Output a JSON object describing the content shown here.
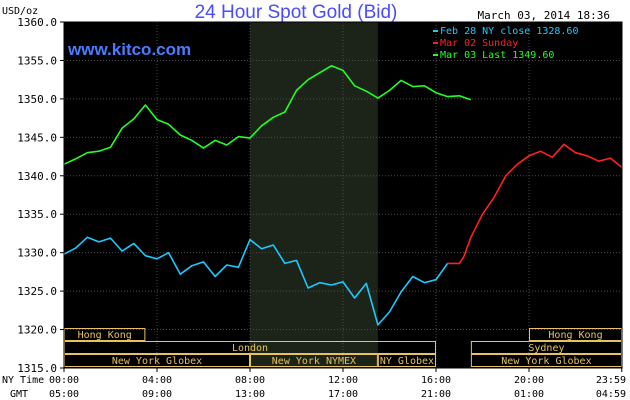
{
  "header": {
    "unit": "USD/oz",
    "title": "24 Hour Spot Gold (Bid)",
    "date": "March 03, 2014 18:36",
    "watermark": "www.kitco.com"
  },
  "legend": [
    {
      "label": "Feb 28 NY close 1328.60",
      "color": "#1ec8ff"
    },
    {
      "label": "Mar 02 Sunday",
      "color": "#ff2020"
    },
    {
      "label": "Mar 03 Last 1349.60",
      "color": "#22ff22"
    }
  ],
  "axis_labels": {
    "ny_time": "NY Time",
    "gmt": "GMT"
  },
  "colors": {
    "background": "#000000",
    "title": "#4b4bff",
    "watermark": "#4b7bff",
    "grid": "#4a4a4a",
    "axis_text": "#000000",
    "session_text": "#e8c25a",
    "shade": "#1c2419"
  },
  "sessions": {
    "row1": [
      {
        "label": "Hong Kong",
        "start": 0,
        "end": 3.5
      },
      {
        "label": "Hong Kong",
        "start": 20,
        "end": 24
      }
    ],
    "row2": [
      {
        "label": "London",
        "start": 0,
        "end": 16
      },
      {
        "label": "Sydney",
        "start": 17.5,
        "end": 24
      }
    ],
    "row3": [
      {
        "label": "New York Globex",
        "start": 0,
        "end": 8
      },
      {
        "label": "New York NYMEX",
        "start": 8,
        "end": 13.5
      },
      {
        "label": "NY Globex",
        "start": 13.5,
        "end": 16
      },
      {
        "label": "New York Globex",
        "start": 17.5,
        "end": 24
      }
    ]
  },
  "chart_data": {
    "type": "line",
    "title": "24 Hour Spot Gold (Bid)",
    "ylabel": "USD/oz",
    "ylim": [
      1315,
      1360
    ],
    "yticks": [
      "1315.0",
      "1320.0",
      "1325.0",
      "1330.0",
      "1335.0",
      "1340.0",
      "1345.0",
      "1350.0",
      "1355.0",
      "1360.0"
    ],
    "xlim": [
      0,
      24
    ],
    "xticks_ny": [
      "00:00",
      "04:00",
      "08:00",
      "12:00",
      "16:00",
      "20:00",
      "23:59"
    ],
    "xticks_gmt": [
      "05:00",
      "09:00",
      "13:00",
      "17:00",
      "21:00",
      "01:00",
      "04:59"
    ],
    "shaded_range": [
      8,
      13.5
    ],
    "series": [
      {
        "name": "Feb 28 NY close 1328.60",
        "color": "#1ec8ff",
        "x": [
          0,
          0.5,
          1,
          1.5,
          2,
          2.5,
          3,
          3.5,
          4,
          4.5,
          5,
          5.5,
          6,
          6.5,
          7,
          7.5,
          8,
          8.5,
          9,
          9.5,
          10,
          10.5,
          11,
          11.5,
          12,
          12.5,
          13,
          13.5,
          14,
          14.5,
          15,
          15.5,
          16,
          16.5
        ],
        "y": [
          1329.8,
          1330.6,
          1332.0,
          1331.4,
          1331.9,
          1330.2,
          1331.2,
          1329.6,
          1329.2,
          1330.0,
          1327.2,
          1328.3,
          1328.8,
          1326.9,
          1328.4,
          1328.1,
          1331.7,
          1330.5,
          1331.0,
          1328.6,
          1329.0,
          1325.4,
          1326.1,
          1325.8,
          1326.2,
          1324.1,
          1326.0,
          1320.6,
          1322.3,
          1324.9,
          1326.9,
          1326.1,
          1326.5,
          1328.6
        ]
      },
      {
        "name": "Mar 02 Sunday",
        "color": "#ff2020",
        "x": [
          16.5,
          17.0,
          17.2,
          17.5,
          18,
          18.5,
          19,
          19.5,
          20,
          20.5,
          21,
          21.5,
          22,
          22.5,
          23,
          23.5,
          23.99
        ],
        "y": [
          1328.6,
          1328.6,
          1329.5,
          1332.0,
          1335.0,
          1337.2,
          1340.0,
          1341.5,
          1342.6,
          1343.2,
          1342.4,
          1344.1,
          1343.0,
          1342.6,
          1341.9,
          1342.3,
          1341.1
        ]
      },
      {
        "name": "Mar 03 Last 1349.60",
        "color": "#22ff22",
        "x": [
          0,
          0.5,
          1,
          1.5,
          2,
          2.5,
          3,
          3.5,
          4,
          4.5,
          5,
          5.5,
          6,
          6.5,
          7,
          7.5,
          8,
          8.5,
          9,
          9.5,
          10,
          10.5,
          11,
          11.5,
          12,
          12.5,
          13,
          13.5,
          14,
          14.5,
          15,
          15.5,
          16,
          16.5,
          17,
          17.5
        ],
        "y": [
          1341.5,
          1342.2,
          1343.0,
          1343.2,
          1343.7,
          1346.2,
          1347.4,
          1349.2,
          1347.3,
          1346.7,
          1345.3,
          1344.6,
          1343.6,
          1344.6,
          1344.0,
          1345.1,
          1344.9,
          1346.5,
          1347.6,
          1348.3,
          1351.1,
          1352.5,
          1353.4,
          1354.3,
          1353.7,
          1351.7,
          1351.0,
          1350.1,
          1351.1,
          1352.4,
          1351.6,
          1351.7,
          1350.8,
          1350.3,
          1350.4,
          1349.9
        ]
      }
    ]
  }
}
